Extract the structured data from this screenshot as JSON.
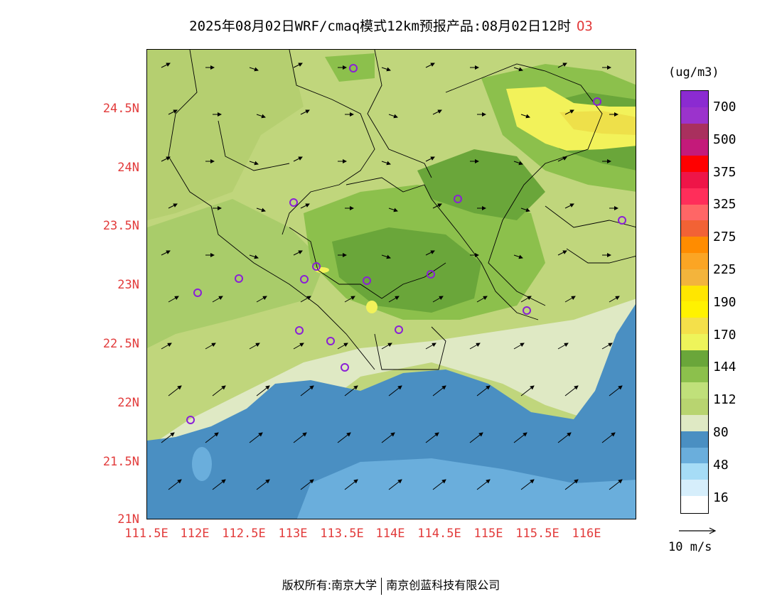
{
  "header": {
    "title": "2025年08月02日WRF/cmaq模式12km预报产品:08月02日12时",
    "pollutant": "O3"
  },
  "map": {
    "lat_ticks": [
      "24.5N",
      "24N",
      "23.5N",
      "23N",
      "22.5N",
      "22N",
      "21.5N",
      "21N"
    ],
    "lon_ticks": [
      "111.5E",
      "112E",
      "112.5E",
      "113E",
      "113.5E",
      "114E",
      "114.5E",
      "115E",
      "115.5E",
      "116E"
    ],
    "colors": {
      "sea_deep": "#4a8fc2",
      "sea_light": "#6aaedc",
      "coast_band": "#dfe9c4",
      "land_low": "#c0d67c",
      "land_mid": "#a9cc6a",
      "land_high": "#8cc04c",
      "land_higher": "#6aa63a",
      "hotspot": "#f2f25a",
      "hotspot_core": "#f0e040",
      "station_marker": "#8a1fd6"
    }
  },
  "colorbar": {
    "unit": "(ug/m3)",
    "labels": [
      "700",
      "500",
      "375",
      "325",
      "275",
      "225",
      "190",
      "170",
      "144",
      "112",
      "80",
      "48",
      "16"
    ],
    "colors": [
      "#8b2bd1",
      "#9b33cc",
      "#a9305e",
      "#c41a7a",
      "#ff0000",
      "#ee1548",
      "#ff2e5a",
      "#ff6666",
      "#f26235",
      "#ff8c00",
      "#fba524",
      "#f3b43c",
      "#ffe600",
      "#fff200",
      "#f4e04a",
      "#eef45a",
      "#6aa63a",
      "#8cc04c",
      "#c0e07a",
      "#b8d470",
      "#dfe9c4",
      "#4a8fc2",
      "#6aaedc",
      "#a6dcf6",
      "#d6eefb",
      "#ffffff"
    ]
  },
  "wind": {
    "scale_label": "10 m/s"
  },
  "footer": {
    "copyright_label": "版权所有:南京大学",
    "company": "南京创蓝科技有限公司"
  }
}
